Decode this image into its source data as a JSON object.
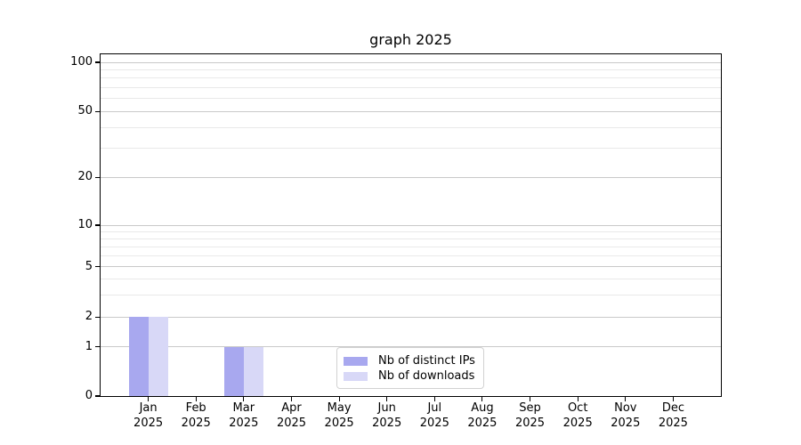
{
  "chart_data": {
    "type": "bar",
    "title": "graph 2025",
    "x_ticklabels": [
      {
        "line1": "Jan",
        "line2": "2025"
      },
      {
        "line1": "Feb",
        "line2": "2025"
      },
      {
        "line1": "Mar",
        "line2": "2025"
      },
      {
        "line1": "Apr",
        "line2": "2025"
      },
      {
        "line1": "May",
        "line2": "2025"
      },
      {
        "line1": "Jun",
        "line2": "2025"
      },
      {
        "line1": "Jul",
        "line2": "2025"
      },
      {
        "line1": "Aug",
        "line2": "2025"
      },
      {
        "line1": "Sep",
        "line2": "2025"
      },
      {
        "line1": "Oct",
        "line2": "2025"
      },
      {
        "line1": "Nov",
        "line2": "2025"
      },
      {
        "line1": "Dec",
        "line2": "2025"
      }
    ],
    "series": [
      {
        "name": "Nb of distinct IPs",
        "color": "#a8a8ef",
        "values": [
          2,
          0,
          1,
          0,
          0,
          0,
          0,
          0,
          0,
          0,
          0,
          0
        ]
      },
      {
        "name": "Nb of downloads",
        "color": "#d8d8f7",
        "values": [
          2,
          0,
          1,
          0,
          0,
          0,
          0,
          0,
          0,
          0,
          0,
          0
        ]
      }
    ],
    "yticks": [
      0,
      1,
      2,
      5,
      10,
      20,
      50,
      100
    ],
    "yscale": "log-like",
    "ylim": [
      0,
      112
    ],
    "grid": true,
    "legend_position": "lower center"
  },
  "styles": {
    "background": "#ffffff",
    "axis_color": "#000000",
    "text_color": "#000000",
    "grid_major_color": "#c9c9c9",
    "grid_minor_color": "#e9e9e9",
    "legend_border_color": "#d2d2d2",
    "series_colors": [
      "#a8a8ef",
      "#d8d8f7"
    ]
  }
}
